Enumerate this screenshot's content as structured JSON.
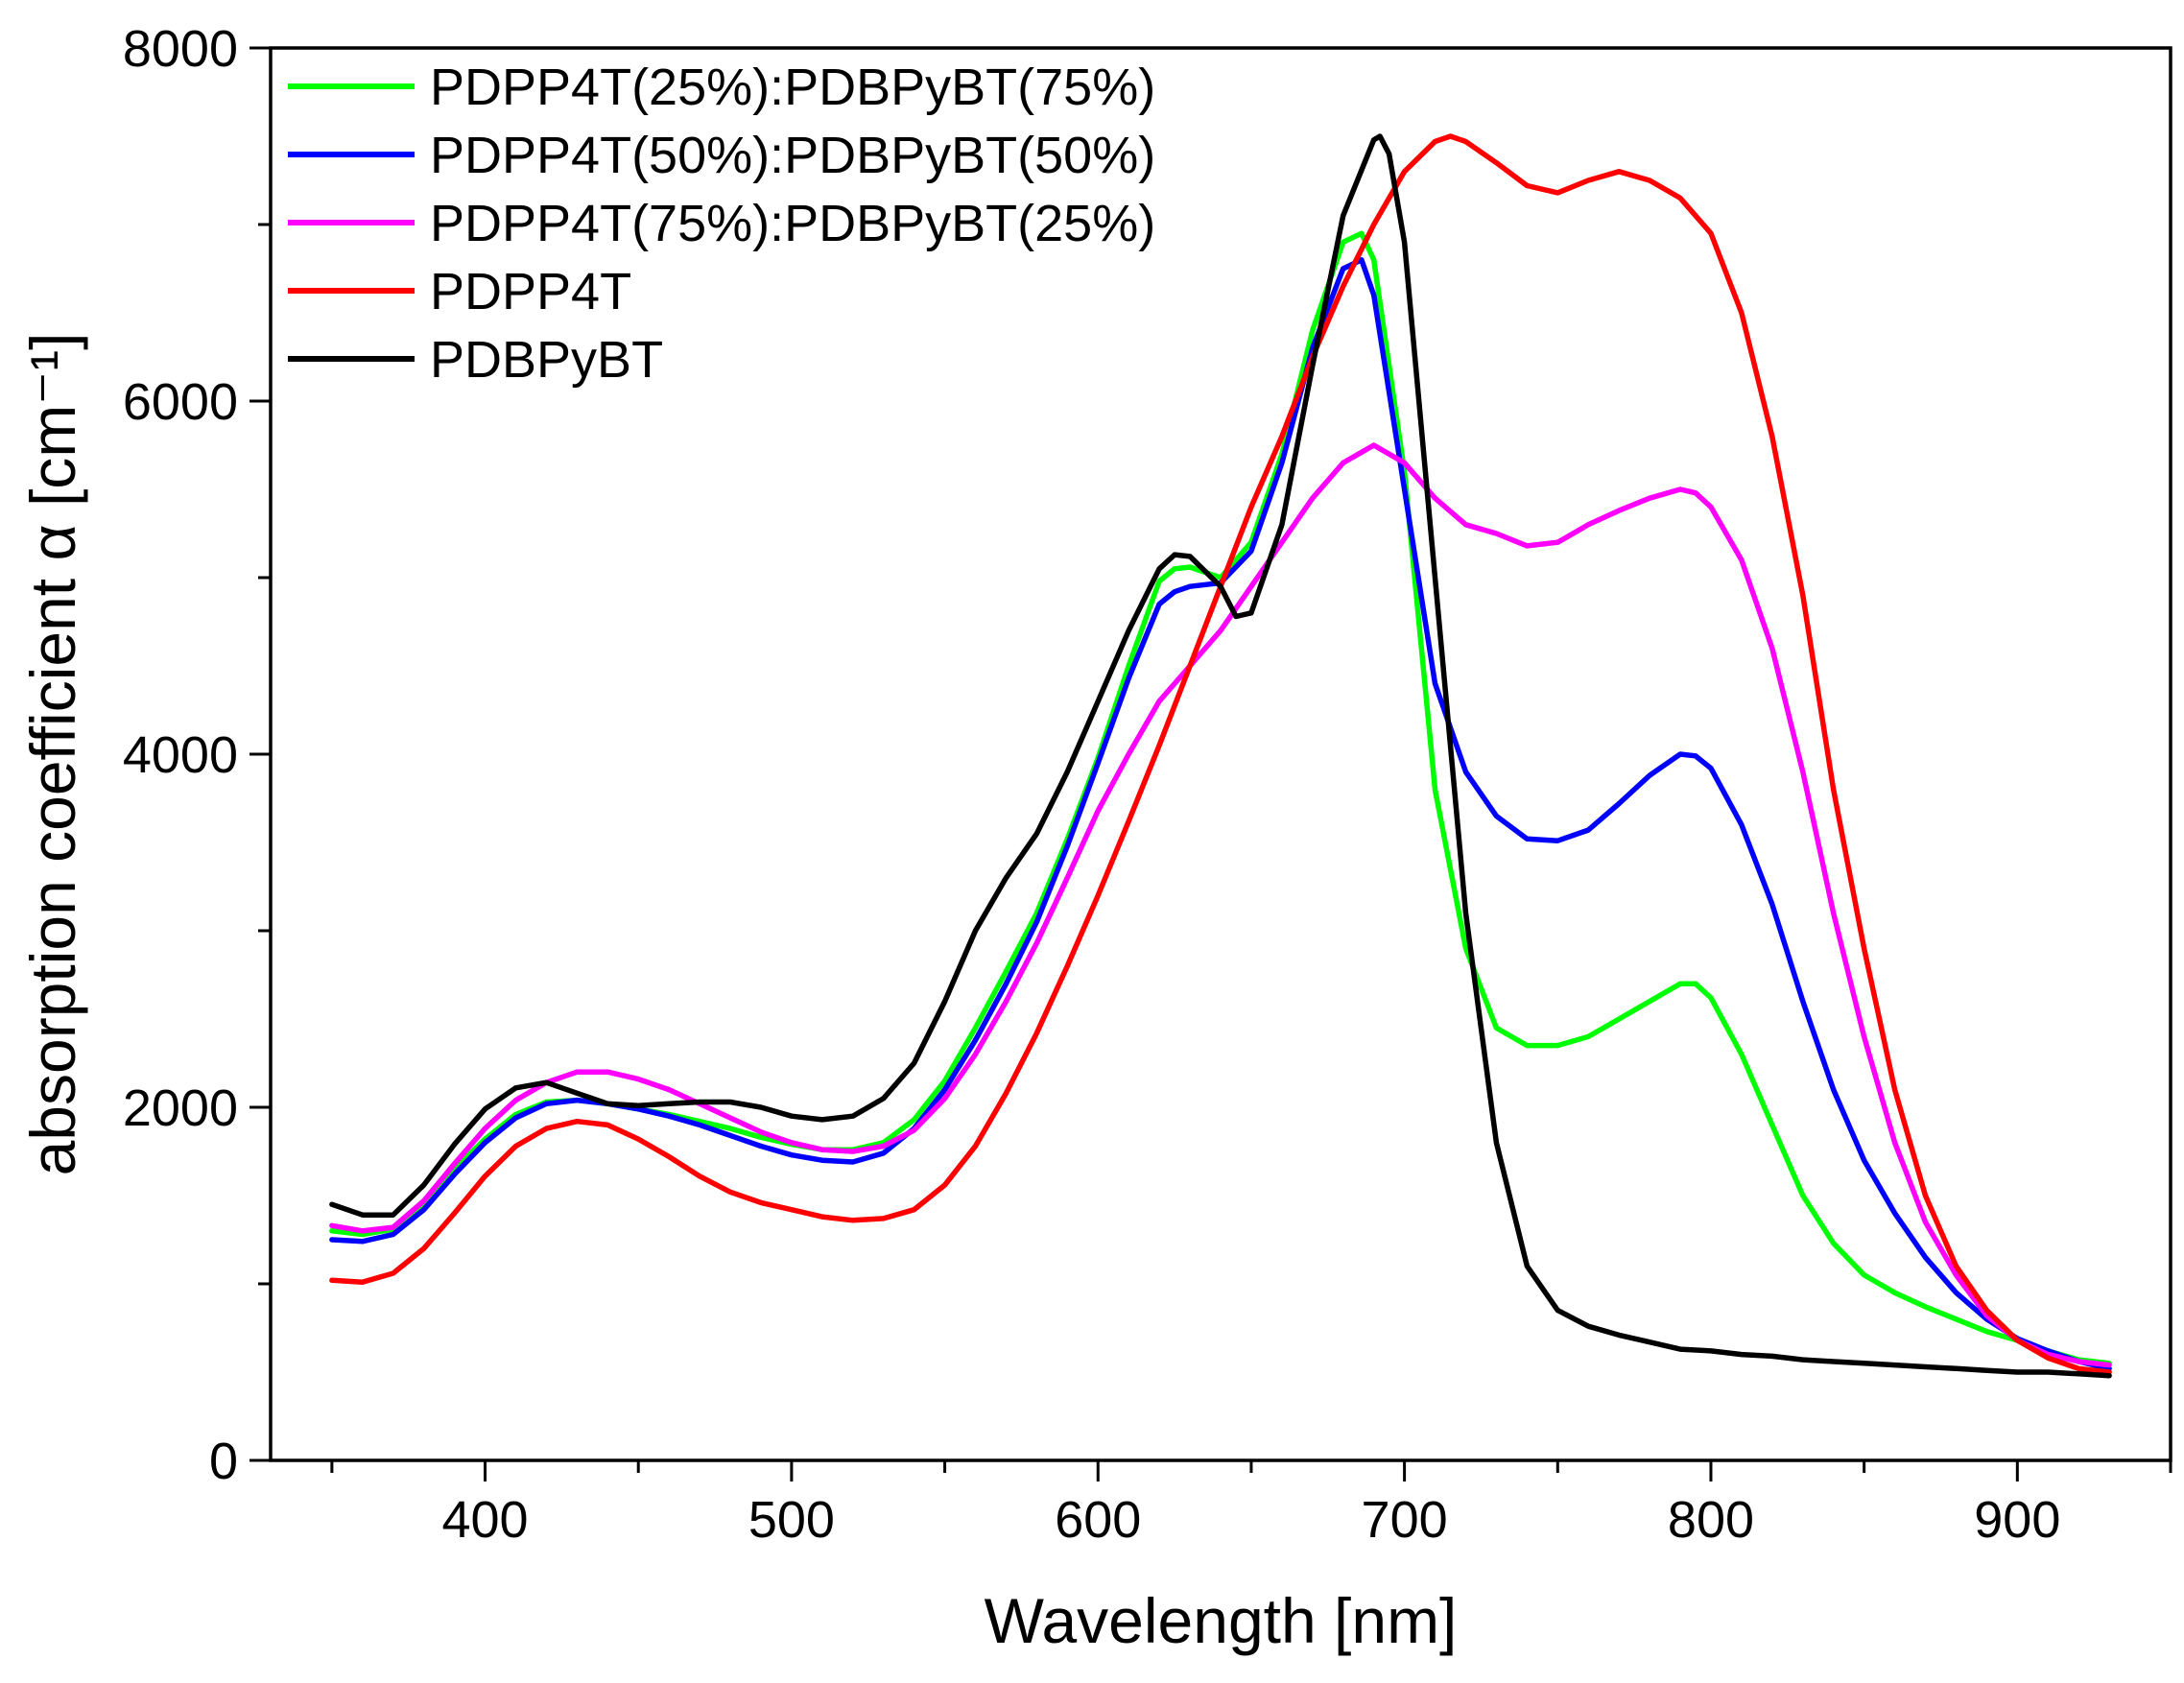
{
  "chart_data": {
    "type": "line",
    "title": "",
    "xlabel": "Wavelength [nm]",
    "ylabel": "absorption coefficient α [cm⁻¹]",
    "xlim": [
      330,
      950
    ],
    "ylim": [
      0,
      8000
    ],
    "xticks": [
      400,
      500,
      600,
      700,
      800,
      900
    ],
    "xtick_labels": [
      "400",
      "500",
      "600",
      "700",
      "800",
      "900"
    ],
    "yticks": [
      0,
      2000,
      4000,
      6000,
      8000
    ],
    "ytick_labels": [
      "0",
      "2000",
      "4000",
      "6000",
      "8000"
    ],
    "grid": false,
    "legend_position": "top-left",
    "series": [
      {
        "name": "PDPP4T(25%):PDBPyBT(75%)",
        "color": "#00ff00",
        "x": [
          350,
          360,
          370,
          380,
          390,
          400,
          410,
          420,
          430,
          440,
          450,
          460,
          470,
          480,
          490,
          500,
          510,
          520,
          530,
          540,
          550,
          560,
          570,
          580,
          590,
          600,
          610,
          620,
          625,
          630,
          640,
          650,
          660,
          670,
          680,
          686,
          690,
          700,
          710,
          720,
          730,
          740,
          750,
          760,
          770,
          780,
          790,
          795,
          800,
          810,
          820,
          830,
          840,
          850,
          860,
          870,
          880,
          890,
          900,
          910,
          920,
          930
        ],
        "y": [
          1300,
          1280,
          1310,
          1450,
          1650,
          1820,
          1960,
          2030,
          2040,
          2020,
          1990,
          1960,
          1920,
          1880,
          1830,
          1790,
          1760,
          1760,
          1800,
          1930,
          2150,
          2450,
          2770,
          3100,
          3520,
          3980,
          4500,
          4980,
          5050,
          5060,
          5000,
          5200,
          5700,
          6400,
          6900,
          6950,
          6800,
          5600,
          3800,
          2900,
          2450,
          2350,
          2350,
          2400,
          2500,
          2600,
          2700,
          2700,
          2620,
          2300,
          1900,
          1500,
          1230,
          1050,
          950,
          870,
          800,
          730,
          680,
          620,
          570,
          550
        ]
      },
      {
        "name": "PDPP4T(50%):PDBPyBT(50%)",
        "color": "#0000ff",
        "x": [
          350,
          360,
          370,
          380,
          390,
          400,
          410,
          420,
          430,
          440,
          450,
          460,
          470,
          480,
          490,
          500,
          510,
          520,
          530,
          540,
          550,
          560,
          570,
          580,
          590,
          600,
          610,
          620,
          625,
          630,
          640,
          650,
          660,
          670,
          680,
          686,
          690,
          700,
          710,
          720,
          730,
          740,
          750,
          760,
          770,
          780,
          790,
          795,
          800,
          810,
          820,
          830,
          840,
          850,
          860,
          870,
          880,
          890,
          900,
          910,
          920,
          930
        ],
        "y": [
          1250,
          1240,
          1280,
          1420,
          1620,
          1800,
          1940,
          2020,
          2040,
          2020,
          1990,
          1950,
          1900,
          1840,
          1780,
          1730,
          1700,
          1690,
          1740,
          1880,
          2100,
          2380,
          2700,
          3050,
          3480,
          3950,
          4430,
          4850,
          4920,
          4950,
          4970,
          5150,
          5650,
          6300,
          6750,
          6800,
          6600,
          5500,
          4400,
          3900,
          3650,
          3520,
          3510,
          3570,
          3720,
          3880,
          4000,
          3990,
          3920,
          3600,
          3150,
          2600,
          2100,
          1700,
          1400,
          1150,
          950,
          800,
          690,
          620,
          560,
          520
        ]
      },
      {
        "name": "PDPP4T(75%):PDBPyBT(25%)",
        "color": "#ff00ff",
        "x": [
          350,
          360,
          370,
          380,
          390,
          400,
          410,
          420,
          430,
          440,
          450,
          460,
          470,
          480,
          490,
          500,
          510,
          520,
          530,
          540,
          550,
          560,
          570,
          580,
          590,
          600,
          610,
          620,
          630,
          640,
          650,
          660,
          670,
          680,
          690,
          700,
          710,
          720,
          730,
          740,
          750,
          760,
          770,
          780,
          790,
          795,
          800,
          810,
          820,
          830,
          840,
          850,
          860,
          870,
          880,
          890,
          900,
          910,
          920,
          930
        ],
        "y": [
          1330,
          1300,
          1320,
          1470,
          1680,
          1880,
          2040,
          2140,
          2200,
          2200,
          2160,
          2100,
          2020,
          1940,
          1860,
          1800,
          1760,
          1750,
          1780,
          1870,
          2050,
          2300,
          2600,
          2930,
          3300,
          3680,
          4000,
          4300,
          4500,
          4700,
          4950,
          5200,
          5450,
          5650,
          5750,
          5650,
          5450,
          5300,
          5250,
          5180,
          5200,
          5300,
          5380,
          5450,
          5500,
          5480,
          5400,
          5100,
          4600,
          3900,
          3100,
          2400,
          1800,
          1350,
          1050,
          820,
          680,
          600,
          560,
          540
        ]
      },
      {
        "name": "PDPP4T",
        "color": "#ff0000",
        "x": [
          350,
          360,
          370,
          380,
          390,
          400,
          410,
          420,
          430,
          440,
          450,
          460,
          470,
          480,
          490,
          500,
          510,
          520,
          530,
          540,
          550,
          560,
          570,
          580,
          590,
          600,
          610,
          620,
          630,
          640,
          650,
          660,
          670,
          680,
          690,
          700,
          710,
          715,
          720,
          730,
          740,
          750,
          760,
          770,
          780,
          790,
          800,
          810,
          820,
          830,
          840,
          850,
          860,
          870,
          880,
          890,
          900,
          910,
          920,
          930
        ],
        "y": [
          1020,
          1010,
          1060,
          1200,
          1400,
          1610,
          1780,
          1880,
          1920,
          1900,
          1820,
          1720,
          1610,
          1520,
          1460,
          1420,
          1380,
          1360,
          1370,
          1420,
          1560,
          1780,
          2080,
          2420,
          2800,
          3200,
          3620,
          4050,
          4500,
          4950,
          5400,
          5800,
          6250,
          6650,
          7000,
          7300,
          7470,
          7500,
          7470,
          7350,
          7220,
          7180,
          7250,
          7300,
          7250,
          7150,
          6950,
          6500,
          5800,
          4900,
          3800,
          2900,
          2100,
          1500,
          1100,
          850,
          680,
          580,
          520,
          500
        ]
      },
      {
        "name": "PDBPyBT",
        "color": "#000000",
        "x": [
          350,
          360,
          370,
          380,
          390,
          400,
          410,
          420,
          430,
          440,
          450,
          460,
          470,
          480,
          490,
          500,
          510,
          520,
          530,
          540,
          550,
          560,
          570,
          580,
          590,
          600,
          610,
          620,
          625,
          630,
          640,
          645,
          650,
          660,
          670,
          680,
          690,
          692,
          695,
          700,
          710,
          720,
          730,
          740,
          750,
          760,
          770,
          780,
          790,
          800,
          810,
          820,
          830,
          840,
          850,
          860,
          870,
          880,
          890,
          900,
          910,
          920,
          930
        ],
        "y": [
          1450,
          1390,
          1390,
          1560,
          1790,
          1990,
          2110,
          2140,
          2080,
          2020,
          2010,
          2020,
          2030,
          2030,
          2000,
          1950,
          1930,
          1950,
          2050,
          2250,
          2600,
          3000,
          3300,
          3550,
          3900,
          4300,
          4700,
          5050,
          5130,
          5120,
          4950,
          4780,
          4800,
          5300,
          6200,
          7050,
          7480,
          7500,
          7400,
          6900,
          5000,
          3100,
          1800,
          1100,
          850,
          760,
          710,
          670,
          630,
          620,
          600,
          590,
          570,
          560,
          550,
          540,
          530,
          520,
          510,
          500,
          500,
          490,
          480
        ]
      }
    ]
  }
}
